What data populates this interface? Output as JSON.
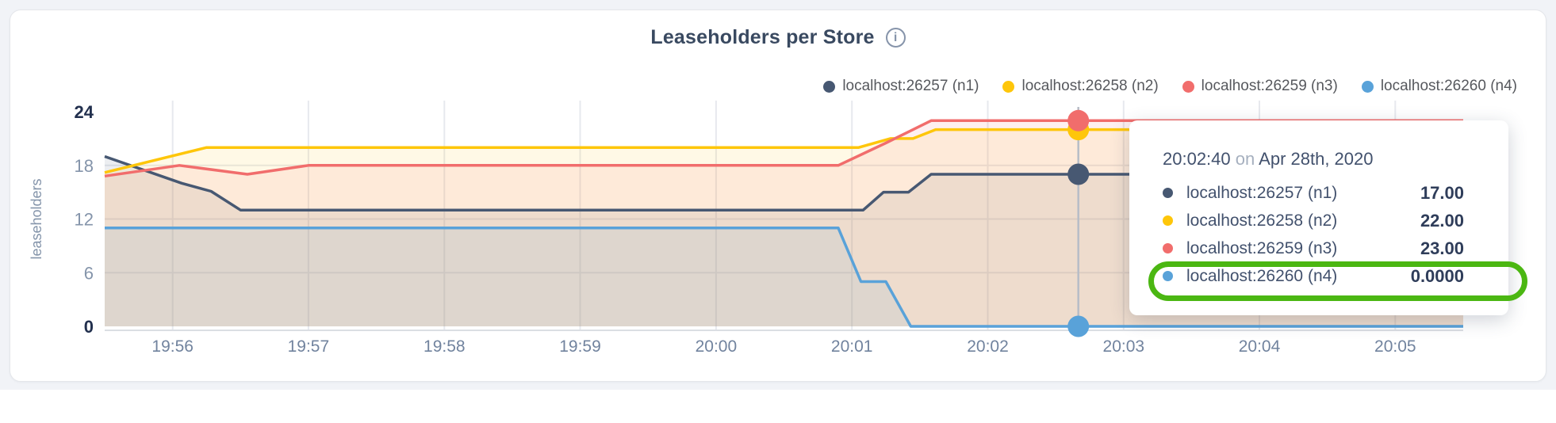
{
  "header": {
    "title": "Leaseholders per Store"
  },
  "legend": {
    "items": [
      {
        "label": "localhost:26257 (n1)",
        "color": "#475872"
      },
      {
        "label": "localhost:26258 (n2)",
        "color": "#fec60a"
      },
      {
        "label": "localhost:26259 (n3)",
        "color": "#f16d6c"
      },
      {
        "label": "localhost:26260 (n4)",
        "color": "#59a2d9"
      }
    ]
  },
  "chart_data": {
    "type": "area",
    "title": "Leaseholders per Store",
    "xlabel": "",
    "ylabel": "leaseholders",
    "ylim": [
      0,
      24
    ],
    "y_ticks": [
      0,
      6,
      12,
      18,
      24
    ],
    "y_ticks_bold": [
      0,
      24
    ],
    "grid": true,
    "legend_position": "top-right",
    "x_domain_seconds": [
      0,
      600
    ],
    "x_ticks": [
      {
        "t": 30,
        "label": "19:56"
      },
      {
        "t": 90,
        "label": "19:57"
      },
      {
        "t": 150,
        "label": "19:58"
      },
      {
        "t": 210,
        "label": "19:59"
      },
      {
        "t": 270,
        "label": "20:00"
      },
      {
        "t": 330,
        "label": "20:01"
      },
      {
        "t": 390,
        "label": "20:02"
      },
      {
        "t": 450,
        "label": "20:03"
      },
      {
        "t": 510,
        "label": "20:04"
      },
      {
        "t": 570,
        "label": "20:05"
      }
    ],
    "series": [
      {
        "name": "localhost:26257 (n1)",
        "color": "#475872",
        "points": [
          [
            0,
            19
          ],
          [
            34,
            16
          ],
          [
            47,
            15.1
          ],
          [
            60,
            13
          ],
          [
            335,
            13
          ],
          [
            344,
            15
          ],
          [
            355,
            15
          ],
          [
            365,
            17
          ],
          [
            600,
            17
          ]
        ]
      },
      {
        "name": "localhost:26258 (n2)",
        "color": "#fec60a",
        "points": [
          [
            0,
            17.2
          ],
          [
            45,
            20
          ],
          [
            333,
            20
          ],
          [
            347,
            21
          ],
          [
            357,
            21
          ],
          [
            367,
            22
          ],
          [
            600,
            22
          ]
        ]
      },
      {
        "name": "localhost:26259 (n3)",
        "color": "#f16d6c",
        "points": [
          [
            0,
            16.8
          ],
          [
            33,
            18
          ],
          [
            63,
            17
          ],
          [
            90,
            18
          ],
          [
            324,
            18
          ],
          [
            345,
            20.5
          ],
          [
            365,
            23
          ],
          [
            600,
            23
          ]
        ]
      },
      {
        "name": "localhost:26260 (n4)",
        "color": "#59a2d9",
        "points": [
          [
            0,
            11
          ],
          [
            324,
            11
          ],
          [
            334,
            5
          ],
          [
            345,
            5
          ],
          [
            356,
            0
          ],
          [
            600,
            0
          ]
        ]
      }
    ],
    "hover_marker": {
      "t": 430,
      "values": [
        17,
        22,
        23,
        0
      ]
    }
  },
  "tooltip": {
    "time": "20:02:40",
    "on_word": "on",
    "date": "Apr 28th, 2020",
    "rows": [
      {
        "label": "localhost:26257 (n1)",
        "value": "17.00",
        "color": "#475872",
        "highlighted": false
      },
      {
        "label": "localhost:26258 (n2)",
        "value": "22.00",
        "color": "#fec60a",
        "highlighted": false
      },
      {
        "label": "localhost:26259 (n3)",
        "value": "23.00",
        "color": "#f16d6c",
        "highlighted": false
      },
      {
        "label": "localhost:26260 (n4)",
        "value": "0.0000",
        "color": "#59a2d9",
        "highlighted": true
      }
    ],
    "highlight_color": "#4bb712"
  },
  "colors": {
    "page_background": "#f1f3f7",
    "card_background": "#ffffff",
    "title_text": "#394960",
    "grid_line": "#e7e9ee",
    "axis_line": "#dbdee3",
    "tick_label": "#8494aa",
    "tick_label_bold": "#22304e",
    "x_tick_label": "#71839e",
    "crosshair": "#b7bdc7"
  }
}
